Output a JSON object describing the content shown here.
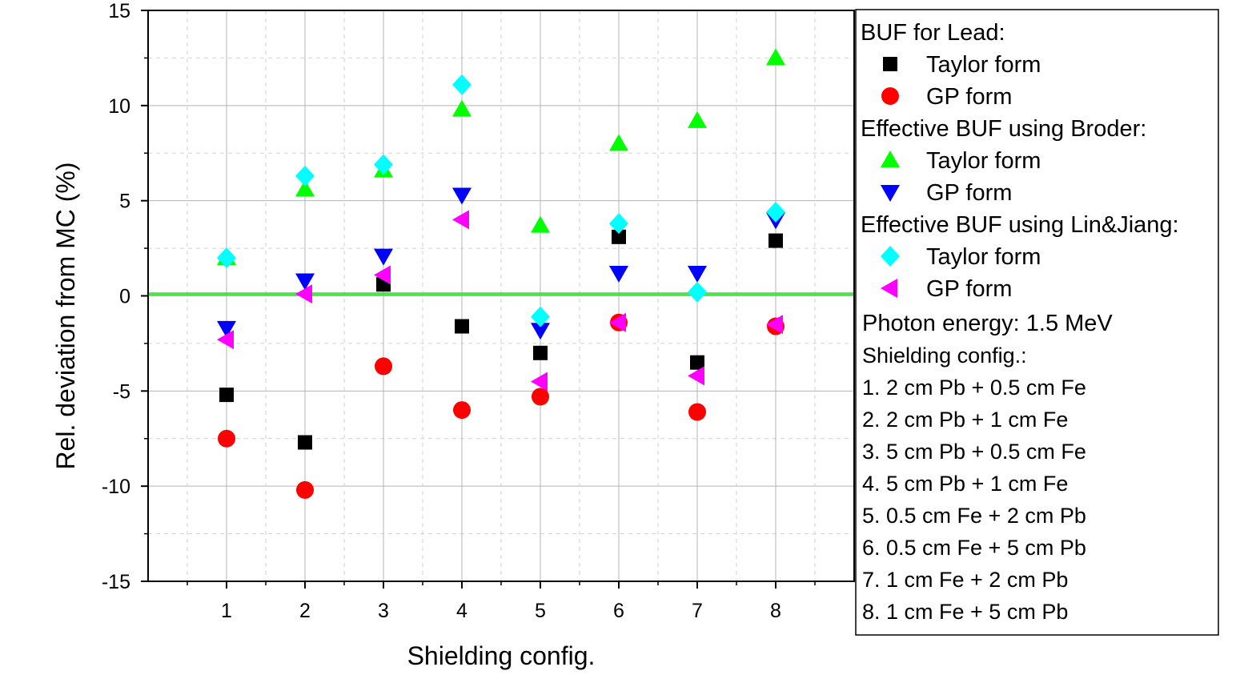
{
  "chart_data": {
    "type": "scatter",
    "title": "",
    "xlabel": "Shielding config.",
    "ylabel": "Rel. deviation from MC (%)",
    "xlim": [
      0,
      9
    ],
    "ylim": [
      -15,
      15
    ],
    "x_ticks": [
      1,
      2,
      3,
      4,
      5,
      6,
      7,
      8
    ],
    "y_ticks": [
      -15,
      -10,
      -5,
      0,
      5,
      10,
      15
    ],
    "grid": true,
    "reference_line": {
      "y": 0.1,
      "color": "#33dd33"
    },
    "x": [
      1,
      2,
      3,
      4,
      5,
      6,
      7,
      8
    ],
    "series": [
      {
        "name": "Taylor form",
        "group": "BUF for Lead:",
        "marker": "square",
        "color": "#000000",
        "values": [
          -5.2,
          -7.7,
          0.6,
          -1.6,
          -3.0,
          3.1,
          -3.5,
          2.9
        ]
      },
      {
        "name": "GP form",
        "group": "BUF for Lead:",
        "marker": "circle",
        "color": "#ff0000",
        "values": [
          -7.5,
          -10.2,
          -3.7,
          -6.0,
          -5.3,
          -1.4,
          -6.1,
          -1.6
        ]
      },
      {
        "name": "Taylor form",
        "group": "Effective BUF using Broder:",
        "marker": "triangle-up",
        "color": "#00ff00",
        "values": [
          2.0,
          5.6,
          6.6,
          9.8,
          3.7,
          8.0,
          9.2,
          12.5
        ]
      },
      {
        "name": "GP form",
        "group": "Effective BUF using Broder:",
        "marker": "triangle-down",
        "color": "#0000ff",
        "values": [
          -1.7,
          0.8,
          2.1,
          5.3,
          -1.8,
          1.2,
          1.2,
          4.0
        ]
      },
      {
        "name": "Taylor form",
        "group": "Effective BUF using Lin&Jiang:",
        "marker": "diamond",
        "color": "#00ffff",
        "values": [
          2.0,
          6.3,
          6.9,
          11.1,
          -1.1,
          3.8,
          0.2,
          4.4
        ]
      },
      {
        "name": "GP form",
        "group": "Effective BUF using Lin&Jiang:",
        "marker": "triangle-left",
        "color": "#ff00ff",
        "values": [
          -2.3,
          0.1,
          1.1,
          4.0,
          -4.5,
          -1.4,
          -4.2,
          -1.5
        ]
      }
    ],
    "legend": {
      "placement": "right",
      "groups": [
        "BUF for Lead:",
        "Effective BUF using Broder:",
        "Effective BUF using Lin&Jiang:"
      ],
      "notes": [
        "Photon energy: 1.5 MeV",
        "Shielding config.:",
        "1. 2 cm Pb + 0.5 cm Fe",
        "2. 2 cm Pb + 1 cm Fe",
        "3. 5 cm Pb + 0.5 cm Fe",
        "4. 5 cm Pb + 1 cm Fe",
        "5. 0.5 cm Fe + 2 cm Pb",
        "6. 0.5 cm Fe + 5 cm Pb",
        "7. 1 cm Fe + 2 cm Pb",
        "8. 1 cm Fe + 5 cm Pb"
      ]
    }
  }
}
